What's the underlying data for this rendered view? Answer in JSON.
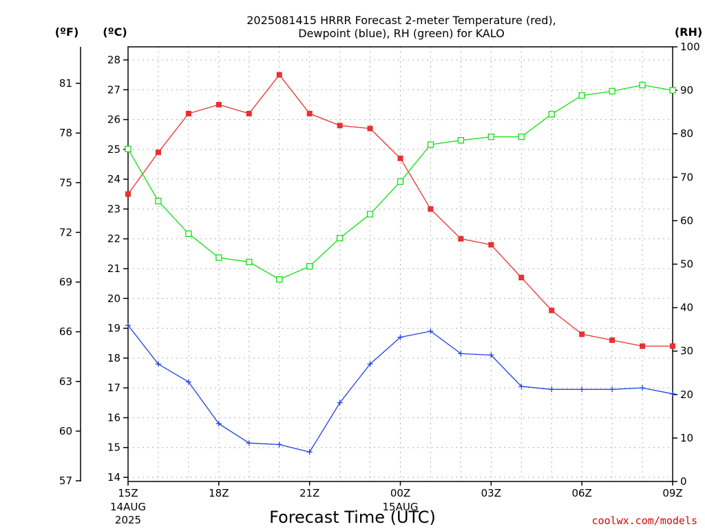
{
  "chart_data": {
    "type": "line",
    "title_lines": [
      "2025081415 HRRR Forecast 2-meter Temperature (red),",
      "Dewpoint (blue), RH (green) for KALO"
    ],
    "xlabel": "Forecast Time (UTC)",
    "credit": "coolwx.com/models",
    "units": {
      "fahrenheit": "(ºF)",
      "celsius": "(ºC)",
      "rh": "(RH)"
    },
    "x_hours": [
      0,
      1,
      2,
      3,
      4,
      5,
      6,
      7,
      8,
      9,
      10,
      11,
      12,
      13,
      14,
      15,
      16,
      17,
      18
    ],
    "x_ticks": [
      {
        "hour": 0,
        "label": "15Z",
        "date": "14AUG",
        "year": "2025"
      },
      {
        "hour": 3,
        "label": "18Z"
      },
      {
        "hour": 6,
        "label": "21Z"
      },
      {
        "hour": 9,
        "label": "00Z",
        "date": "15AUG"
      },
      {
        "hour": 12,
        "label": "03Z"
      },
      {
        "hour": 15,
        "label": "06Z"
      },
      {
        "hour": 18,
        "label": "09Z"
      }
    ],
    "celsius_axis": {
      "min": 14,
      "max": 28,
      "ticks": [
        "14",
        "15",
        "16",
        "17",
        "18",
        "19",
        "20",
        "21",
        "22",
        "23",
        "24",
        "25",
        "26",
        "27",
        "28"
      ]
    },
    "fahrenheit_ticks": [
      "57",
      "60",
      "63",
      "66",
      "69",
      "72",
      "75",
      "78",
      "81"
    ],
    "rh_axis": {
      "min": 0,
      "max": 100,
      "ticks": [
        "0",
        "10",
        "20",
        "30",
        "40",
        "50",
        "60",
        "70",
        "80",
        "90",
        "100"
      ]
    },
    "series": [
      {
        "name": "Temperature",
        "color": "#e83030",
        "marker": "filled-square",
        "axis": "celsius",
        "values": [
          23.5,
          24.9,
          26.2,
          26.5,
          26.2,
          27.5,
          26.2,
          25.8,
          25.7,
          24.7,
          23.0,
          22.0,
          21.8,
          20.7,
          19.6,
          18.8,
          18.6,
          18.4,
          18.4
        ]
      },
      {
        "name": "Dewpoint",
        "color": "#2040e0",
        "marker": "plus",
        "axis": "celsius",
        "values": [
          19.1,
          17.8,
          17.2,
          15.8,
          15.15,
          15.1,
          14.85,
          16.5,
          17.8,
          18.7,
          18.9,
          18.15,
          18.1,
          17.05,
          16.95,
          16.95,
          16.95,
          17.0,
          16.8
        ]
      },
      {
        "name": "RH",
        "color": "#10e010",
        "marker": "open-square",
        "axis": "rh",
        "values": [
          76.5,
          64.5,
          57.0,
          51.5,
          50.5,
          46.5,
          49.5,
          56.0,
          61.5,
          69.0,
          77.5,
          78.5,
          79.3,
          79.3,
          84.5,
          88.8,
          89.8,
          91.2,
          90.0
        ]
      }
    ],
    "grid": true
  }
}
